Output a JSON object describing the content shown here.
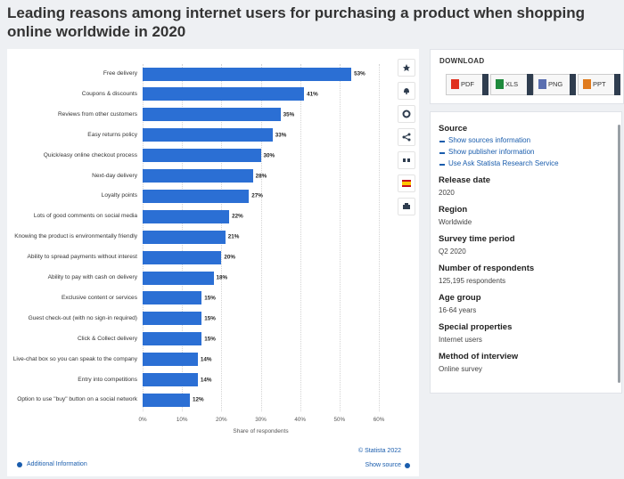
{
  "title": "Leading reasons among internet users for purchasing a product when shopping online worldwide in 2020",
  "chart_data": {
    "type": "bar",
    "orientation": "horizontal",
    "categories": [
      "Free delivery",
      "Coupons & discounts",
      "Reviews from other customers",
      "Easy returns policy",
      "Quick/easy online checkout process",
      "Next-day delivery",
      "Loyalty points",
      "Lots of good comments on social media",
      "Knowing the product is environmentally friendly",
      "Ability to spread payments without interest",
      "Ability to pay with cash on delivery",
      "Exclusive content or services",
      "Guest check-out (with no sign-in required)",
      "Click & Collect delivery",
      "Live-chat box so you can speak to the company",
      "Entry into competitions",
      "Option to use \"buy\" button on a social network"
    ],
    "values": [
      53,
      41,
      35,
      33,
      30,
      28,
      27,
      22,
      21,
      20,
      18,
      15,
      15,
      15,
      14,
      14,
      12
    ],
    "value_labels": [
      "53%",
      "41%",
      "35%",
      "33%",
      "30%",
      "28%",
      "27%",
      "22%",
      "21%",
      "20%",
      "18%",
      "15%",
      "15%",
      "15%",
      "14%",
      "14%",
      "12%"
    ],
    "color": "#2b6fd4",
    "xlim": [
      0,
      60
    ],
    "xticks": [
      {
        "value": 0,
        "label": "0%"
      },
      {
        "value": 10,
        "label": "10%"
      },
      {
        "value": 20,
        "label": "20%"
      },
      {
        "value": 30,
        "label": "30%"
      },
      {
        "value": 40,
        "label": "40%"
      },
      {
        "value": 50,
        "label": "50%"
      },
      {
        "value": 60,
        "label": "60%"
      }
    ],
    "x_label": "Share of respondents",
    "grid": true
  },
  "chart_footer": {
    "copyright": "© Statista 2022",
    "additional_info": "Additional Information",
    "show_source": "Show source"
  },
  "download": {
    "title": "DOWNLOAD",
    "formats": [
      "PDF",
      "XLS",
      "PNG",
      "PPT"
    ]
  },
  "details": {
    "source_title": "Source",
    "source_links": [
      "Show sources information",
      "Show publisher information",
      "Use Ask Statista Research Service"
    ],
    "fields": [
      {
        "label": "Release date",
        "value": "2020"
      },
      {
        "label": "Region",
        "value": "Worldwide"
      },
      {
        "label": "Survey time period",
        "value": "Q2 2020"
      },
      {
        "label": "Number of respondents",
        "value": "125,195 respondents"
      },
      {
        "label": "Age group",
        "value": "16-64 years"
      },
      {
        "label": "Special properties",
        "value": "Internet users"
      },
      {
        "label": "Method of interview",
        "value": "Online survey"
      }
    ]
  }
}
